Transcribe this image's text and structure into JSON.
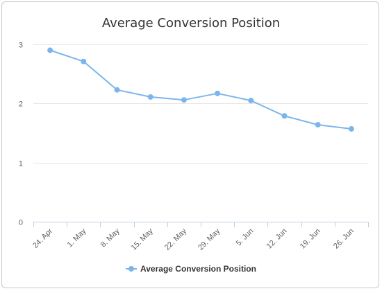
{
  "chart_data": {
    "type": "line",
    "title": "Average Conversion Position",
    "xlabel": "",
    "ylabel": "",
    "categories": [
      "24. Apr",
      "1. May",
      "8. May",
      "15. May",
      "22. May",
      "29. May",
      "5. Jun",
      "12. Jun",
      "19. Jun",
      "26. Jun"
    ],
    "series": [
      {
        "name": "Average Conversion Position",
        "color": "#7cb5ec",
        "values": [
          2.9,
          2.71,
          2.23,
          2.11,
          2.06,
          2.17,
          2.05,
          1.79,
          1.64,
          1.57
        ]
      }
    ],
    "ylim": [
      0,
      3
    ],
    "yticks": [
      0,
      1,
      2,
      3
    ],
    "grid": true,
    "legend": "bottom-center"
  }
}
